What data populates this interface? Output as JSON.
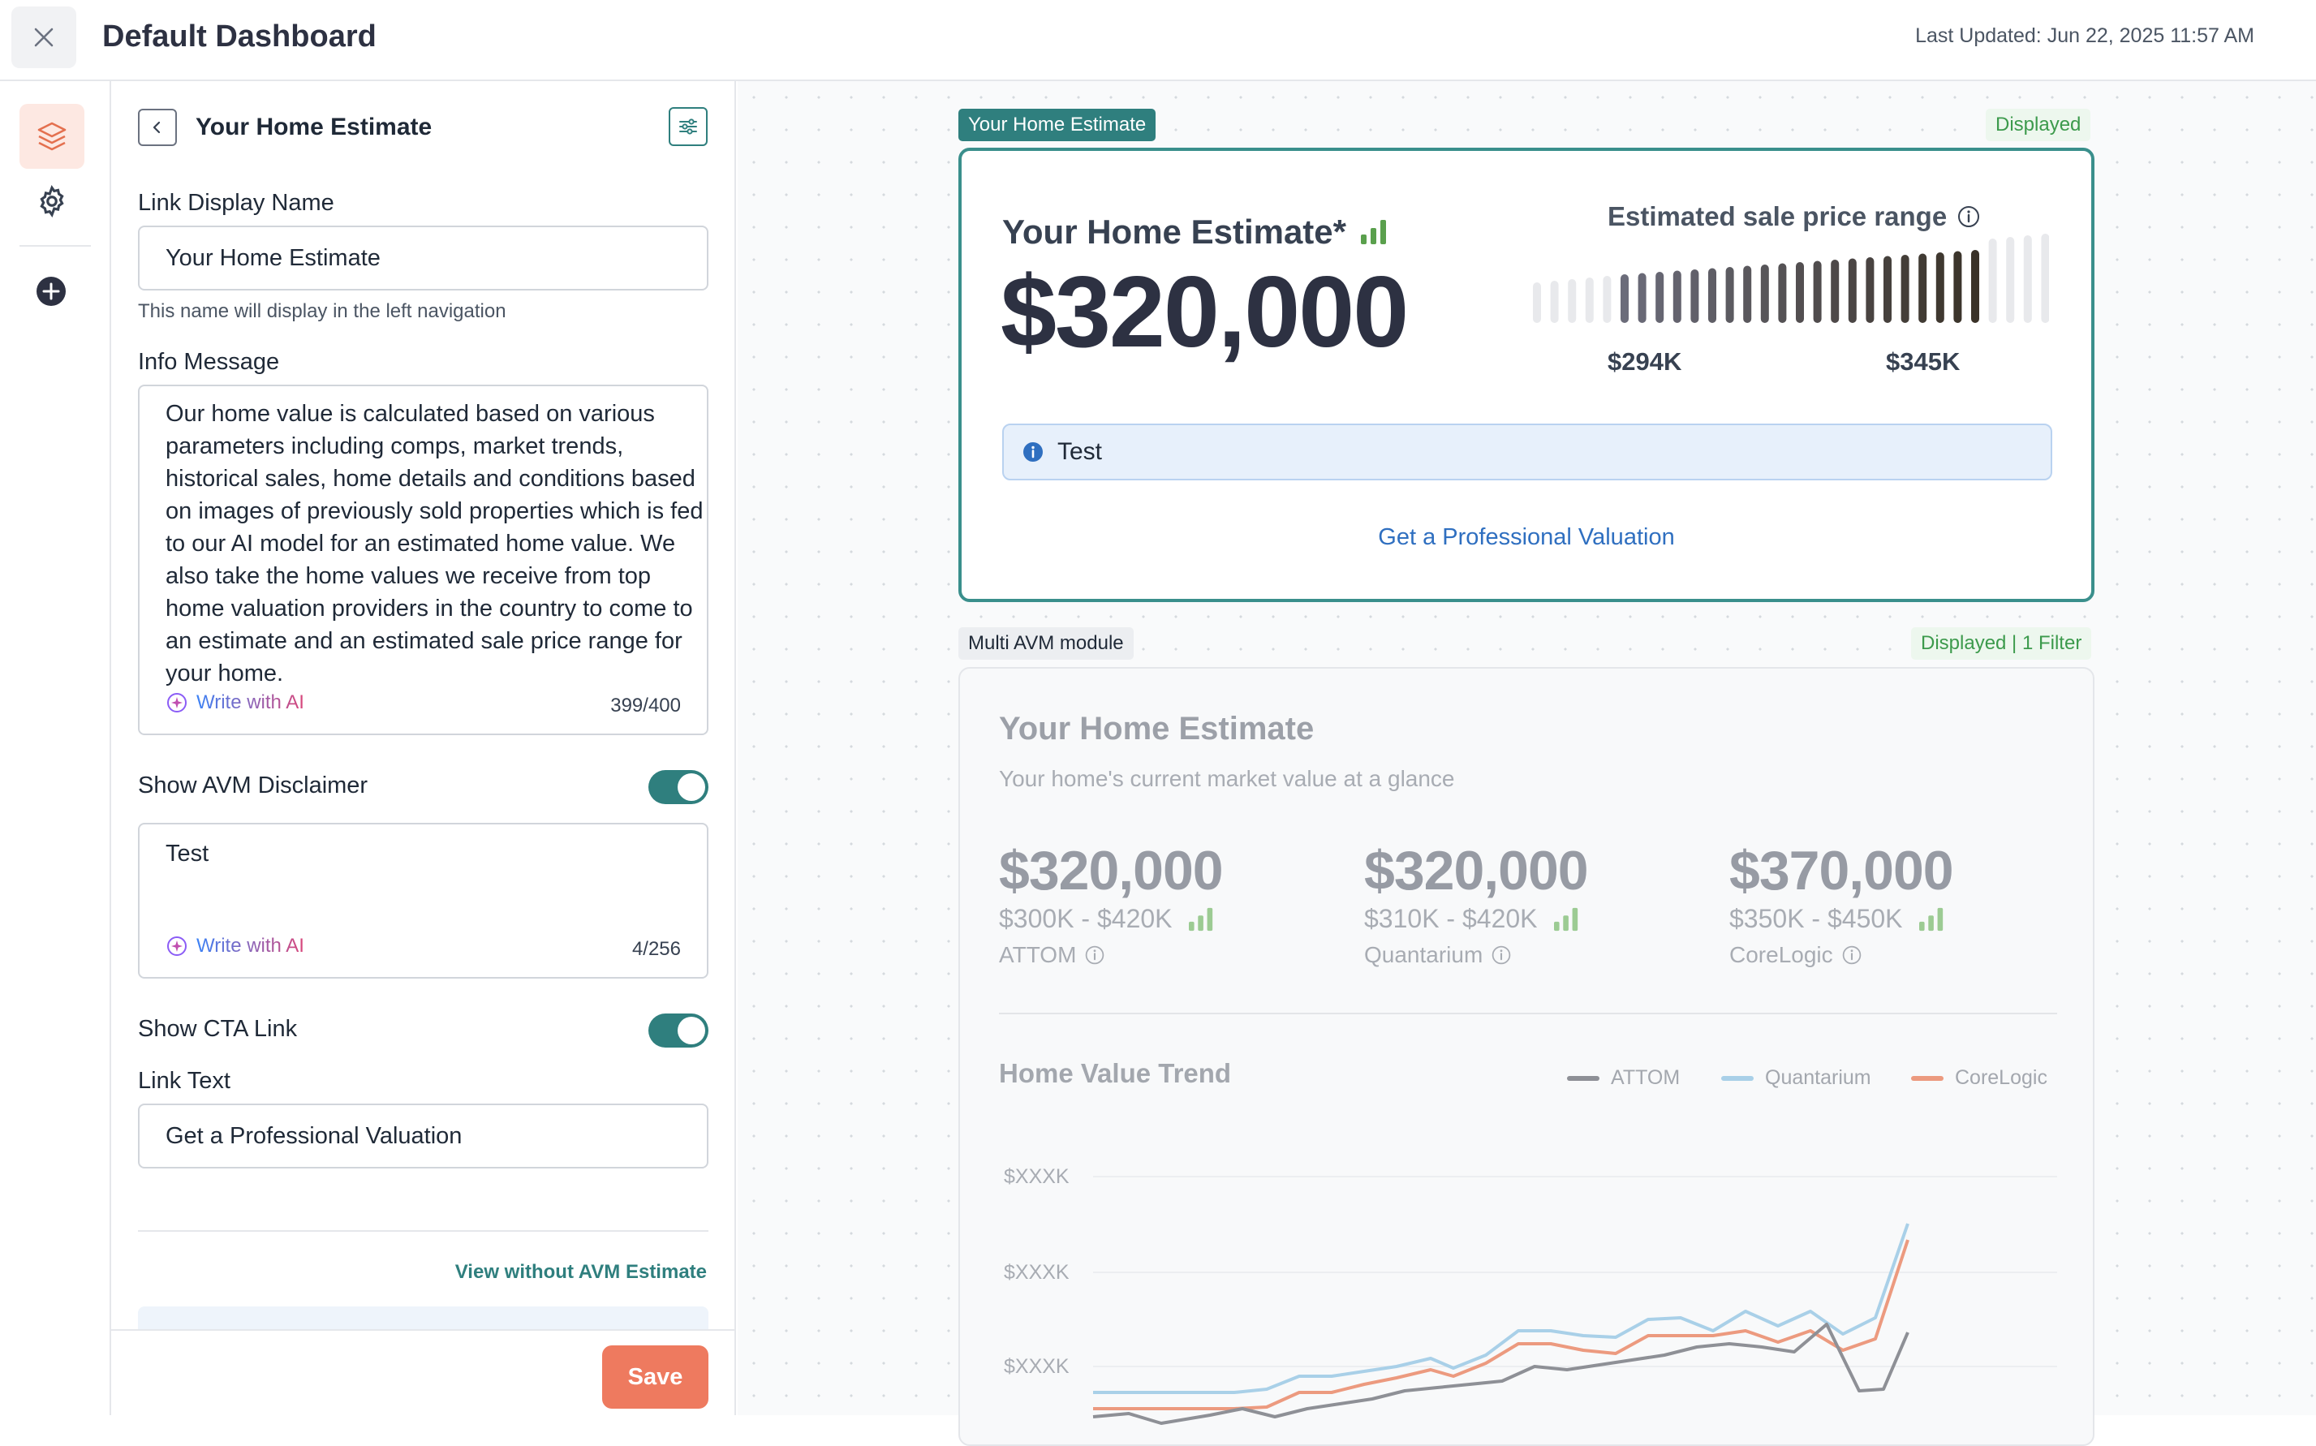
{
  "header": {
    "title": "Default Dashboard",
    "last_updated": "Last Updated: Jun 22, 2025 11:57 AM"
  },
  "rail": {
    "icons": [
      "layers-icon",
      "gear-icon",
      "plus-circle-icon"
    ]
  },
  "panel": {
    "title": "Your Home Estimate",
    "link_display_name_label": "Link Display Name",
    "link_display_name_value": "Your Home Estimate",
    "link_display_name_helper": "This name will display in the left navigation",
    "info_message_label": "Info Message",
    "info_message_value": "Our home value is calculated based on various parameters including comps, market trends, historical sales, home details and conditions based on images of previously sold properties which is fed to our AI model for an estimated home value. We also take the home values we receive from top home valuation providers in the country to come to an estimate and an estimated sale price range for your home.",
    "write_with_ai": "Write with AI",
    "info_message_count": "399/400",
    "show_avm_disclaimer_label": "Show AVM Disclaimer",
    "show_avm_disclaimer_on": true,
    "disclaimer_value": "Test",
    "disclaimer_count": "4/256",
    "show_cta_link_label": "Show CTA Link",
    "show_cta_link_on": true,
    "link_text_label": "Link Text",
    "link_text_value": "Get a Professional Valuation",
    "view_without_avm": "View without AVM Estimate",
    "save": "Save"
  },
  "preview": {
    "home_estimate_card": {
      "tag": "Your Home Estimate",
      "status": "Displayed",
      "title": "Your Home Estimate*",
      "value": "$320,000",
      "range_label": "Estimated sale price range",
      "range_low": "$294K",
      "range_high": "$345K",
      "info_text": "Test",
      "cta": "Get a Professional Valuation",
      "accent": "#3a8f8c"
    },
    "multi_avm_card": {
      "tag": "Multi AVM module",
      "status": "Displayed | 1 Filter",
      "title": "Your Home Estimate",
      "subtitle": "Your home's current market value at a glance",
      "providers": [
        {
          "value": "$320,000",
          "range": "$300K - $420K",
          "name": "ATTOM"
        },
        {
          "value": "$320,000",
          "range": "$310K - $420K",
          "name": "Quantarium"
        },
        {
          "value": "$370,000",
          "range": "$350K - $450K",
          "name": "CoreLogic"
        }
      ],
      "trend_title": "Home Value Trend",
      "legend": [
        {
          "name": "ATTOM",
          "color": "#8e9096"
        },
        {
          "name": "Quantarium",
          "color": "#a9d0e8"
        },
        {
          "name": "CoreLogic",
          "color": "#ec9a7f"
        }
      ],
      "y_ticks": [
        "$XXXK",
        "$XXXK",
        "$XXXK"
      ]
    }
  }
}
